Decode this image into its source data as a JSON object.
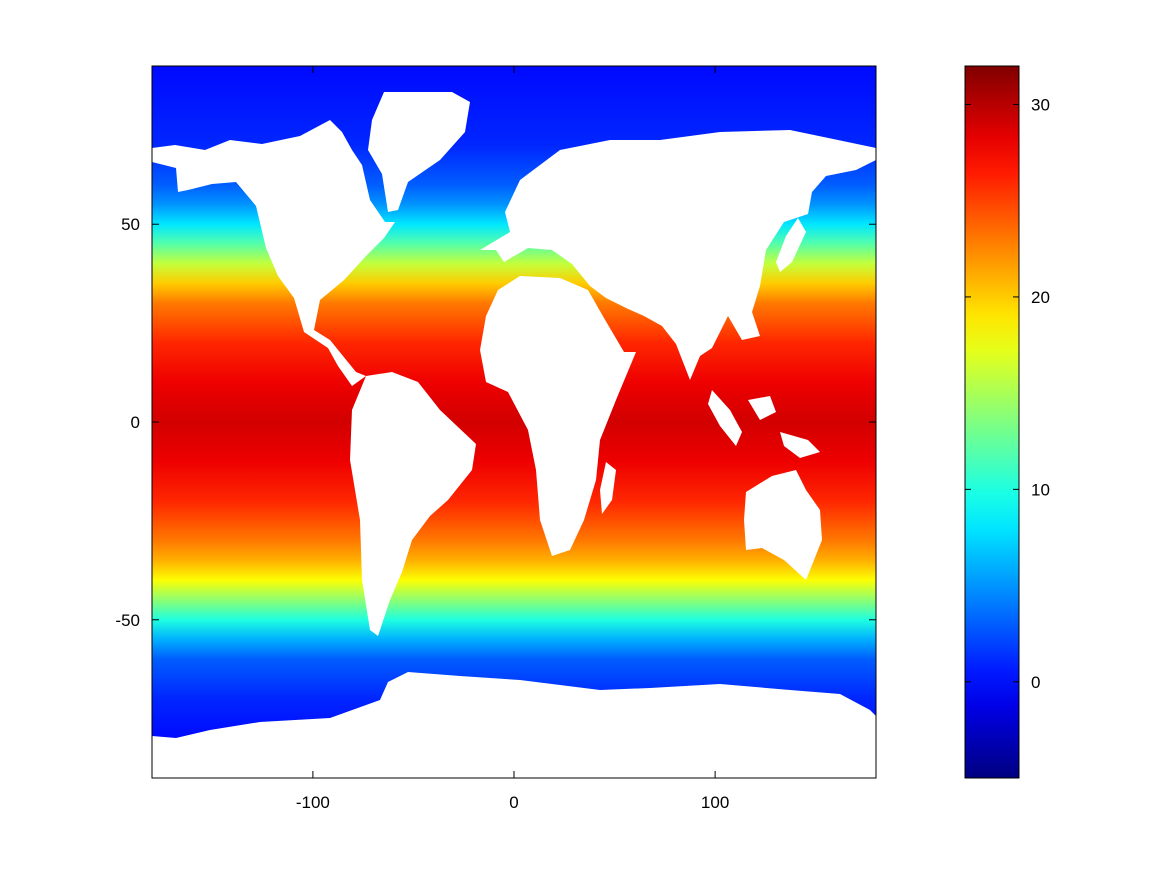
{
  "chart_data": [
    {
      "type": "heatmap",
      "title": "",
      "xlabel": "",
      "ylabel": "",
      "xlim": [
        -180,
        180
      ],
      "ylim": [
        -90,
        90
      ],
      "x_ticks": [
        {
          "value": -100,
          "label": "-100"
        },
        {
          "value": 0,
          "label": "0"
        },
        {
          "value": 100,
          "label": "100"
        }
      ],
      "y_ticks": [
        {
          "value": 50,
          "label": "50"
        },
        {
          "value": 0,
          "label": "0"
        },
        {
          "value": -50,
          "label": "-50"
        }
      ],
      "grid": false,
      "land_color": "#ffffff",
      "colormap": "jet",
      "color_range": [
        -5,
        32
      ],
      "temperature_profile_by_latitude": [
        {
          "lat": -80,
          "value": 0
        },
        {
          "lat": -70,
          "value": 1
        },
        {
          "lat": -60,
          "value": 3
        },
        {
          "lat": -55,
          "value": 6
        },
        {
          "lat": -50,
          "value": 10
        },
        {
          "lat": -45,
          "value": 14
        },
        {
          "lat": -40,
          "value": 18
        },
        {
          "lat": -35,
          "value": 21
        },
        {
          "lat": -30,
          "value": 23
        },
        {
          "lat": -20,
          "value": 26
        },
        {
          "lat": -10,
          "value": 28
        },
        {
          "lat": 0,
          "value": 29
        },
        {
          "lat": 10,
          "value": 28
        },
        {
          "lat": 20,
          "value": 26
        },
        {
          "lat": 30,
          "value": 23
        },
        {
          "lat": 35,
          "value": 20
        },
        {
          "lat": 40,
          "value": 16
        },
        {
          "lat": 45,
          "value": 12
        },
        {
          "lat": 50,
          "value": 8
        },
        {
          "lat": 55,
          "value": 5
        },
        {
          "lat": 60,
          "value": 3
        },
        {
          "lat": 70,
          "value": 1
        },
        {
          "lat": 89,
          "value": 0
        }
      ]
    },
    {
      "type": "colorbar",
      "colormap": "jet",
      "range": [
        -5,
        32
      ],
      "ticks": [
        {
          "value": 0,
          "label": "0"
        },
        {
          "value": 10,
          "label": "10"
        },
        {
          "value": 20,
          "label": "20"
        },
        {
          "value": 30,
          "label": "30"
        }
      ]
    }
  ]
}
